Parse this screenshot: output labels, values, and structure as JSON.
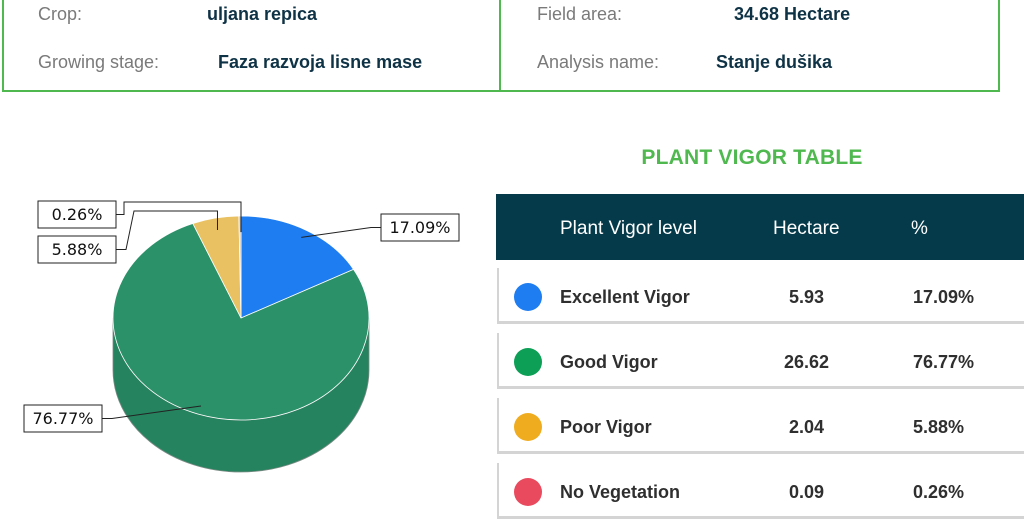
{
  "info": {
    "crop_label": "Crop:",
    "crop_value": "uljana repica",
    "stage_label": "Growing stage:",
    "stage_value": "Faza razvoja lisne mase",
    "area_label": "Field area:",
    "area_value": "34.68 Hectare",
    "analysis_label": "Analysis name:",
    "analysis_value": "Stanje dušika"
  },
  "table": {
    "title": "PLANT VIGOR TABLE",
    "headers": [
      "Plant Vigor level",
      "Hectare",
      "%"
    ],
    "rows": [
      {
        "level": "Excellent Vigor",
        "hectare": "5.93",
        "percent": "17.09%",
        "color": "#1e7df0"
      },
      {
        "level": "Good Vigor",
        "hectare": "26.62",
        "percent": "76.77%",
        "color": "#0c9f55"
      },
      {
        "level": "Poor Vigor",
        "hectare": "2.04",
        "percent": "5.88%",
        "color": "#f0ac1f"
      },
      {
        "level": "No Vegetation",
        "hectare": "0.09",
        "percent": "0.26%",
        "color": "#ea4a5e"
      }
    ]
  },
  "chart_data": {
    "type": "pie",
    "style": "3d",
    "slices": [
      {
        "name": "Excellent Vigor",
        "value": 17.09,
        "label": "17.09%",
        "color": "#1e7df0"
      },
      {
        "name": "Good Vigor",
        "value": 76.77,
        "label": "76.77%",
        "color": "#2a9169"
      },
      {
        "name": "Poor Vigor",
        "value": 5.88,
        "label": "5.88%",
        "color": "#e9c163"
      },
      {
        "name": "No Vegetation",
        "value": 0.26,
        "label": "0.26%",
        "color": "#c0c0c0"
      }
    ]
  }
}
